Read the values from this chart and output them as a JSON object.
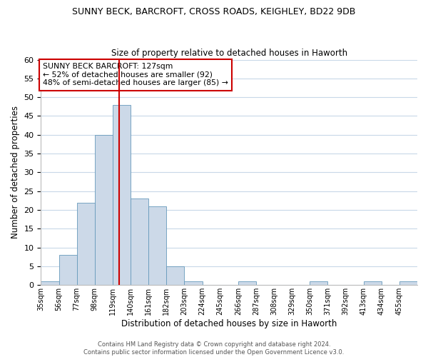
{
  "title": "SUNNY BECK, BARCROFT, CROSS ROADS, KEIGHLEY, BD22 9DB",
  "subtitle": "Size of property relative to detached houses in Haworth",
  "xlabel": "Distribution of detached houses by size in Haworth",
  "ylabel": "Number of detached properties",
  "bin_labels": [
    "35sqm",
    "56sqm",
    "77sqm",
    "98sqm",
    "119sqm",
    "140sqm",
    "161sqm",
    "182sqm",
    "203sqm",
    "224sqm",
    "245sqm",
    "266sqm",
    "287sqm",
    "308sqm",
    "329sqm",
    "350sqm",
    "371sqm",
    "392sqm",
    "413sqm",
    "434sqm",
    "455sqm"
  ],
  "bin_edges": [
    35,
    56,
    77,
    98,
    119,
    140,
    161,
    182,
    203,
    224,
    245,
    266,
    287,
    308,
    329,
    350,
    371,
    392,
    413,
    434,
    455
  ],
  "bar_counts": [
    1,
    8,
    22,
    40,
    48,
    23,
    21,
    5,
    1,
    0,
    0,
    1,
    0,
    0,
    0,
    1,
    0,
    0,
    1,
    0,
    1
  ],
  "bar_color": "#ccd9e8",
  "bar_edge_color": "#6699bb",
  "grid_color": "#c8d8e8",
  "vline_x": 127,
  "vline_color": "#cc0000",
  "annotation_title": "SUNNY BECK BARCROFT: 127sqm",
  "annotation_line1": "← 52% of detached houses are smaller (92)",
  "annotation_line2": "48% of semi-detached houses are larger (85) →",
  "annotation_box_color": "#cc0000",
  "ylim": [
    0,
    60
  ],
  "yticks": [
    0,
    5,
    10,
    15,
    20,
    25,
    30,
    35,
    40,
    45,
    50,
    55,
    60
  ],
  "footer1": "Contains HM Land Registry data © Crown copyright and database right 2024.",
  "footer2": "Contains public sector information licensed under the Open Government Licence v3.0."
}
